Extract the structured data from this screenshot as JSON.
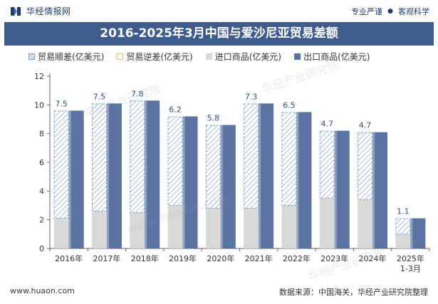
{
  "header": {
    "brand_name": "华经情报网",
    "tagline_left": "专业严谨",
    "tagline_dot": "●",
    "tagline_right": "客观科学"
  },
  "title": "2016-2025年3月中国与爱沙尼亚贸易差额",
  "legend": [
    {
      "label": "贸易顺差(亿美元)"
    },
    {
      "label": "贸易逆差(亿美元)"
    },
    {
      "label": "进口商品(亿美元)"
    },
    {
      "label": "出口商品(亿美元)"
    }
  ],
  "watermarks": [
    "华经产业研究院",
    "华经产业研究院",
    "华经产业研究院",
    "www.huaon.com"
  ],
  "footer": {
    "website": "www.huaon.com",
    "source": "数据来源：中国海关，华经产业研究院整理"
  },
  "colors": {
    "title_bg": "#3e5c8e",
    "export": "#5a73a0",
    "import": "#d9d9d9",
    "surplus_stripe": "#9fb6d3",
    "surplus_border": "#7ea0c4"
  },
  "chart_data": {
    "type": "bar",
    "categories": [
      "2016年",
      "2017年",
      "2018年",
      "2019年",
      "2020年",
      "2021年",
      "2022年",
      "2023年",
      "2024年",
      "2025年\n1-3月"
    ],
    "series": [
      {
        "name": "贸易顺差(亿美元)",
        "values": [
          7.5,
          7.5,
          7.8,
          6.2,
          5.8,
          7.3,
          6.5,
          4.7,
          4.7,
          1.1
        ]
      },
      {
        "name": "进口商品(亿美元)",
        "values": [
          2.1,
          2.6,
          2.5,
          3.0,
          2.8,
          2.8,
          3.0,
          3.5,
          3.4,
          1.0
        ]
      },
      {
        "name": "出口商品(亿美元)",
        "values": [
          9.6,
          10.1,
          10.3,
          9.2,
          8.6,
          10.1,
          9.5,
          8.2,
          8.1,
          2.1
        ]
      }
    ],
    "y_ticks": [
      0,
      2,
      4,
      6,
      8,
      10,
      12
    ],
    "ylim": [
      0,
      12
    ]
  }
}
